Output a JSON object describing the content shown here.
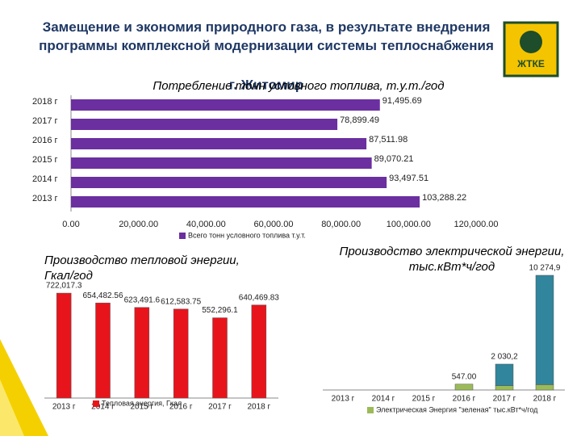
{
  "slide_title": "Замещение и экономия природного газа, в результате внедрения программы комплексной модернизации системы теплоснабжения",
  "city": "г. Житомир",
  "logo_text": "ЖТКЕ",
  "chart_data": [
    {
      "type": "hbar",
      "title": [
        "Потребление тонн условного топлива, т.у.т./год"
      ],
      "categories": [
        "2018 г",
        "2017 г",
        "2016 г",
        "2015 г",
        "2014 г",
        "2013 г"
      ],
      "series": [
        {
          "name": "Всего тонн условного топлива т.у.т.",
          "color": "#6b2fa0",
          "values": [
            91495.69,
            78899.49,
            87511.98,
            89070.21,
            93497.51,
            103288.22
          ],
          "value_labels": [
            "91,495.69",
            "78,899.49",
            "87,511.98",
            "89,070.21",
            "93,497.51",
            "103,288.22"
          ]
        }
      ],
      "xlim": [
        0,
        120000
      ],
      "xticks": [
        {
          "value": 0,
          "label": "0.00"
        },
        {
          "value": 20000,
          "label": "20,000.00"
        },
        {
          "value": 40000,
          "label": "40,000.00"
        },
        {
          "value": 60000,
          "label": "60,000.00"
        },
        {
          "value": 80000,
          "label": "80,000.00"
        },
        {
          "value": 100000,
          "label": "100,000.00"
        },
        {
          "value": 120000,
          "label": "120,000.00"
        }
      ]
    },
    {
      "type": "bar",
      "title": [
        "Производство тепловой энергии,",
        "Гкал/год"
      ],
      "categories": [
        "2013 г",
        "2014 г",
        "2015 г",
        "2016 г",
        "2017 г",
        "2018 г"
      ],
      "series": [
        {
          "name": "Тепловая энергия, Гкал",
          "color": "#e8141c",
          "values": [
            722017.3,
            654482.56,
            623491.6,
            612583.75,
            552296.1,
            640469.83
          ],
          "value_labels": [
            "722,017.3",
            "654,482.56",
            "623,491.6",
            "612,583.75",
            "552,296.1",
            "640,469.83"
          ]
        }
      ],
      "ylim": [
        0,
        1000000
      ]
    },
    {
      "type": "stacked_bar",
      "title": [
        "Производство электрической энергии,",
        "тыс.кВт*ч/год"
      ],
      "categories": [
        "2013 г",
        "2014 г",
        "2015 г",
        "2016 г",
        "2017 г",
        "2018 г"
      ],
      "series": [
        {
          "name": "Электрическая Энергия \"зеленая\" тыс.кВт*ч/год",
          "color": "#9bbb59",
          "values": [
            null,
            null,
            null,
            547,
            400,
            500
          ],
          "value_labels": [
            null,
            null,
            null,
            "547.00",
            null,
            null
          ]
        },
        {
          "color": "#31859c",
          "values": [
            null,
            null,
            null,
            null,
            2030.2,
            10274.9
          ],
          "value_labels": [
            null,
            null,
            null,
            null,
            "2 030,2",
            "10 274,9"
          ]
        }
      ],
      "ylim": [
        0,
        11000
      ]
    }
  ]
}
